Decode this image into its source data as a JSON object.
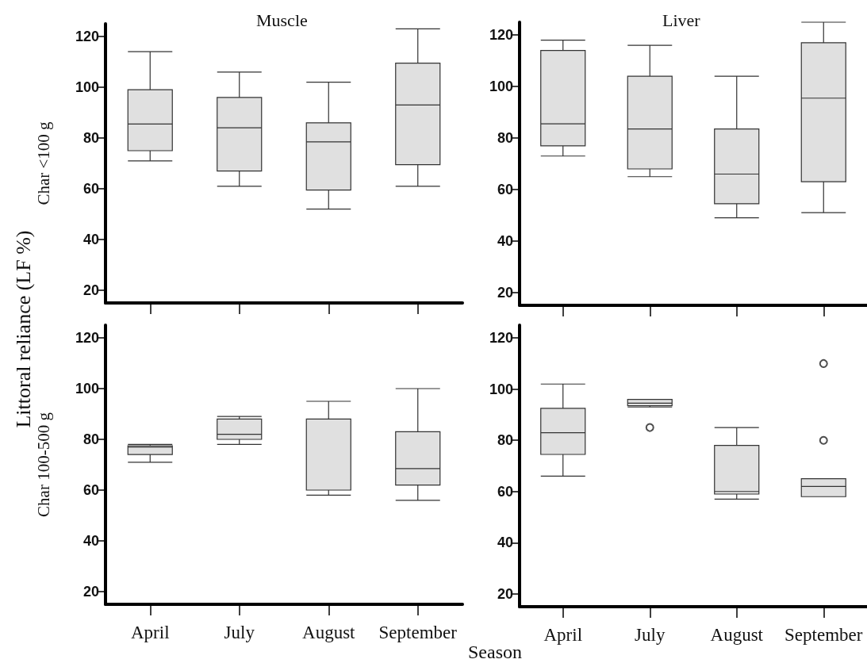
{
  "chart_data": [
    {
      "type": "box",
      "title": "Muscle",
      "ylabel": "Char <100 g",
      "annotations": [
        "Littoral reliance (LF %)"
      ],
      "categories": [
        null,
        null,
        null,
        null
      ],
      "ylim": [
        15,
        125
      ],
      "yticks": [
        20,
        40,
        60,
        80,
        100,
        120
      ],
      "tick_labels": "y",
      "grid": false,
      "color": "#e0e0e0",
      "boxes": [
        {
          "low": 71,
          "q1": 75,
          "median": 85.5,
          "q3": 99,
          "high": 114
        },
        {
          "low": 61,
          "q1": 67,
          "median": 84,
          "q3": 96,
          "high": 106
        },
        {
          "low": 52,
          "q1": 59.5,
          "median": 78.5,
          "q3": 86,
          "high": 102
        },
        {
          "low": 61,
          "q1": 69.5,
          "median": 93,
          "q3": 109.5,
          "high": 123
        }
      ]
    },
    {
      "type": "box",
      "title": "Liver",
      "categories": [
        null,
        null,
        null,
        null
      ],
      "ylim": [
        15,
        125
      ],
      "yticks": [
        20,
        40,
        60,
        80,
        100,
        120
      ],
      "tick_labels": "y",
      "grid": false,
      "color": "#e0e0e0",
      "boxes": [
        {
          "low": 73,
          "q1": 77,
          "median": 85.5,
          "q3": 114,
          "high": 118
        },
        {
          "low": 65,
          "q1": 68,
          "median": 83.5,
          "q3": 104,
          "high": 116
        },
        {
          "low": 49,
          "q1": 54.5,
          "median": 66,
          "q3": 83.5,
          "high": 104
        },
        {
          "low": 51,
          "q1": 63,
          "median": 95.5,
          "q3": 117,
          "high": 125
        }
      ]
    },
    {
      "type": "box",
      "ylabel": "Char 100-500 g",
      "categories": [
        "April",
        "July",
        "August",
        "September"
      ],
      "ylim": [
        15,
        125
      ],
      "yticks": [
        20,
        40,
        60,
        80,
        100,
        120
      ],
      "grid": false,
      "color": "#e0e0e0",
      "boxes": [
        {
          "low": 71,
          "q1": 74,
          "median": 77,
          "q3": 77.5,
          "high": 78
        },
        {
          "low": 78,
          "q1": 80,
          "median": 82,
          "q3": 88,
          "high": 89
        },
        {
          "low": 58,
          "q1": 60,
          "median": 60,
          "q3": 88,
          "high": 95
        },
        {
          "low": 56,
          "q1": 62,
          "median": 68.5,
          "q3": 83,
          "high": 100
        }
      ]
    },
    {
      "type": "box",
      "xlabel": "Season",
      "categories": [
        "April",
        "July",
        "August",
        "September"
      ],
      "ylim": [
        15,
        125
      ],
      "yticks": [
        20,
        40,
        60,
        80,
        100,
        120
      ],
      "grid": false,
      "color": "#e0e0e0",
      "boxes": [
        {
          "low": 66,
          "q1": 74.5,
          "median": 83,
          "q3": 92.5,
          "high": 102
        },
        {
          "low": 93,
          "q1": 93.5,
          "median": 94.5,
          "q3": 96,
          "high": 96,
          "outliers": [
            85
          ]
        },
        {
          "low": 57,
          "q1": 59,
          "median": 60,
          "q3": 78,
          "high": 85
        },
        {
          "low": 58,
          "q1": 58,
          "median": 62,
          "q3": 65,
          "high": 65,
          "outliers": [
            80,
            110
          ]
        }
      ]
    }
  ]
}
